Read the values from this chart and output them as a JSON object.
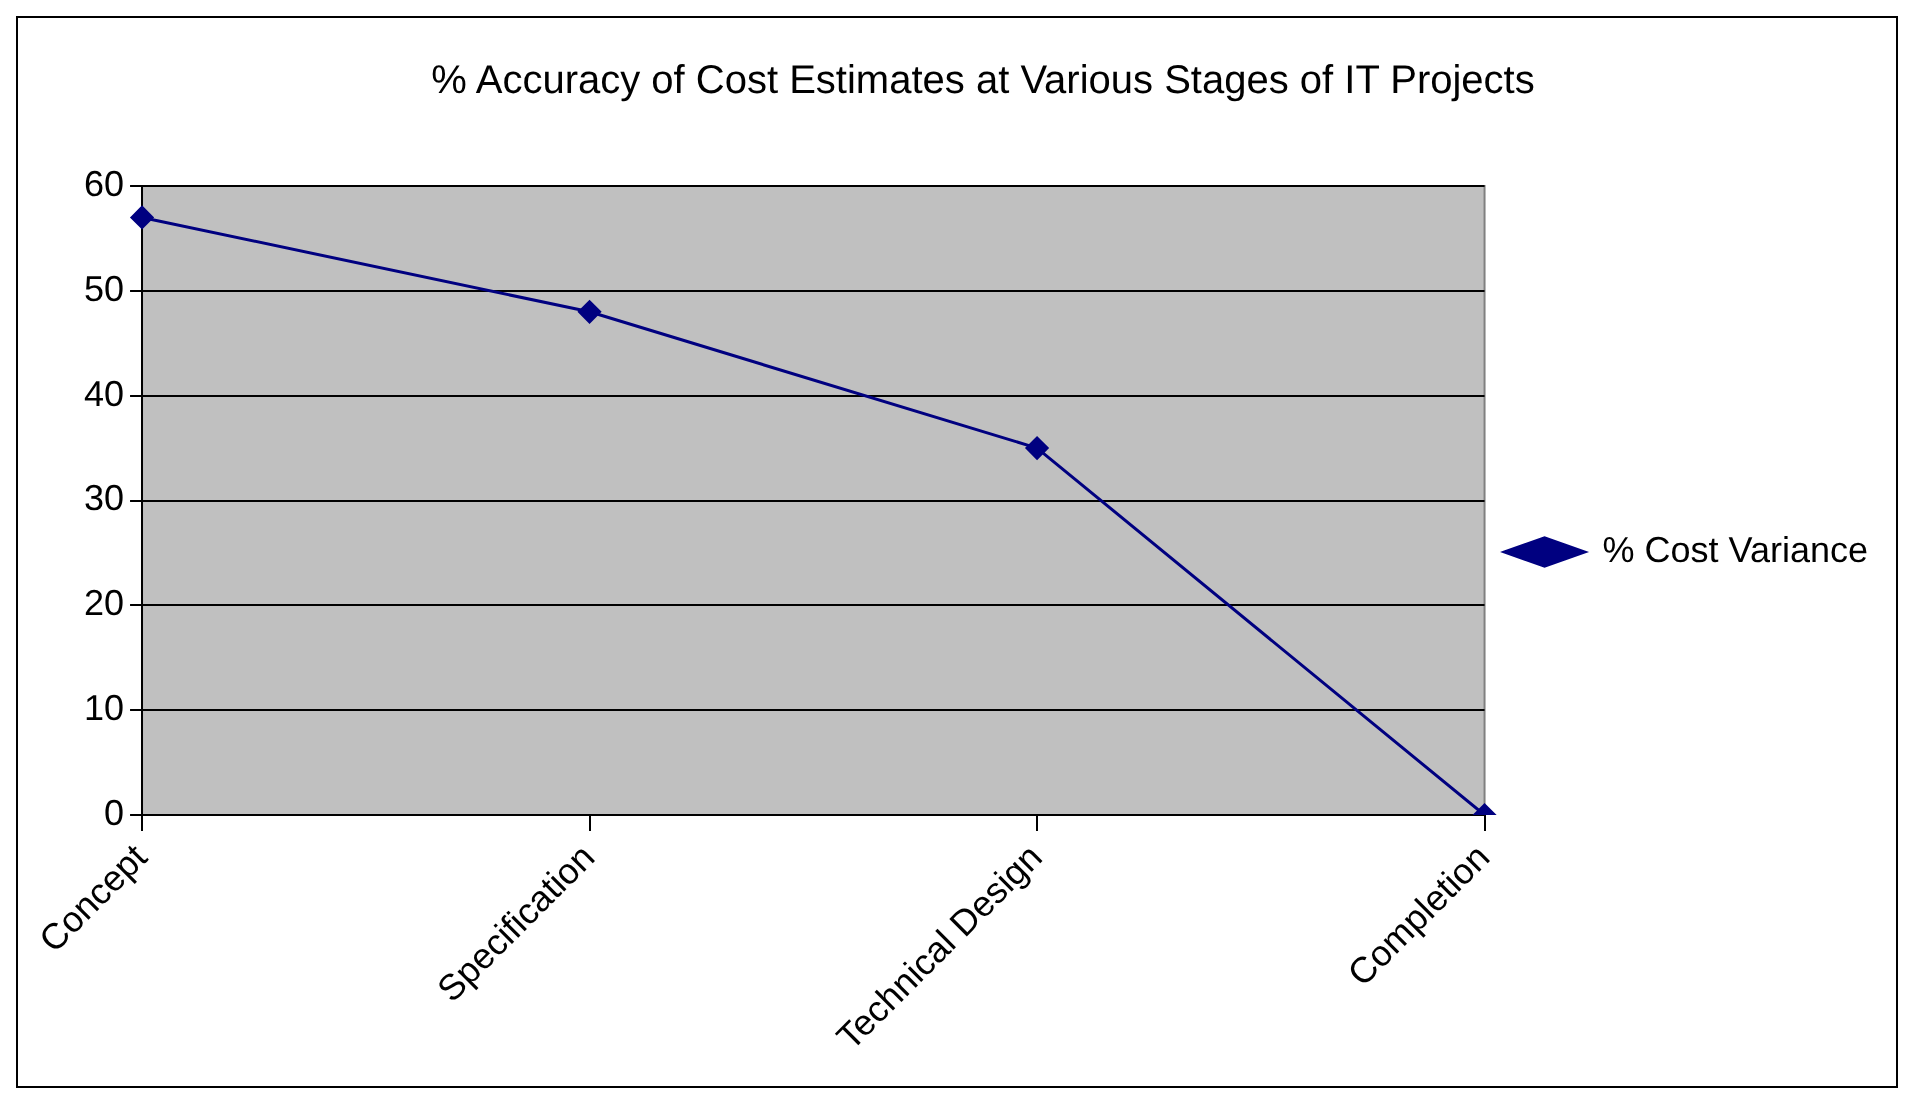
{
  "chart_data": {
    "type": "line",
    "title": "% Accuracy of Cost Estimates at Various Stages of IT Projects",
    "categories": [
      "Concept",
      "Specification",
      "Technical Design",
      "Completion"
    ],
    "series": [
      {
        "name": "% Cost Variance",
        "color": "#000080",
        "values": [
          57,
          48,
          35,
          0
        ]
      }
    ],
    "ylim": [
      0,
      60
    ],
    "yticks": [
      0,
      10,
      20,
      30,
      40,
      50,
      60
    ],
    "grid": "y",
    "legend": "right",
    "marker": "diamond",
    "line_style": "solid"
  }
}
